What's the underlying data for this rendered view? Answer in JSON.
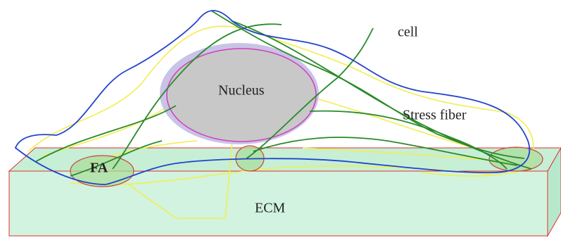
{
  "labels": {
    "cell": "cell",
    "nucleus": "Nucleus",
    "stress_fiber": "Stress fiber",
    "fa": "FA",
    "ecm": "ECM"
  }
}
